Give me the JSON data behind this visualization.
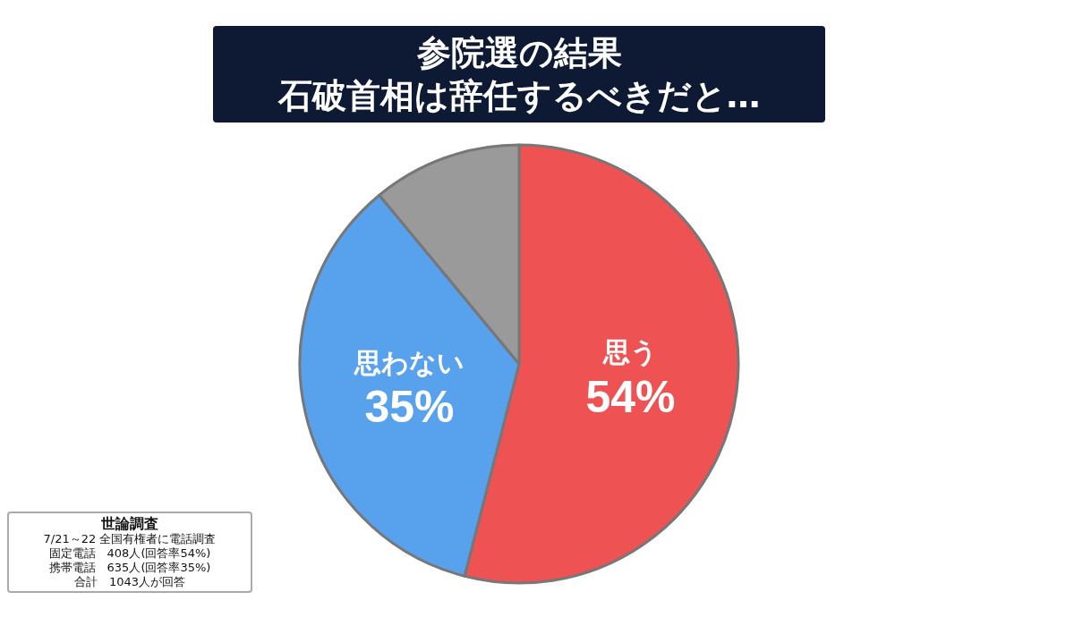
{
  "chart_data": {
    "type": "pie",
    "title": "参院選の結果",
    "subtitle": "石破首相は辞任するべきだと…",
    "categories": [
      "思う",
      "思わない",
      null
    ],
    "values": [
      54,
      35,
      11
    ],
    "colors": [
      "#ee5253",
      "#58a1ec",
      "#9a9a9a"
    ],
    "value_labels": [
      "54%",
      "35%",
      null
    ],
    "legend": false,
    "annotations": [
      "世論調査",
      "7/21～22 全国有権者に電話調査",
      "固定電話　408人(回答率54%)",
      "携帯電話　635人(回答率35%)",
      "合計　1043人が回答"
    ]
  }
}
